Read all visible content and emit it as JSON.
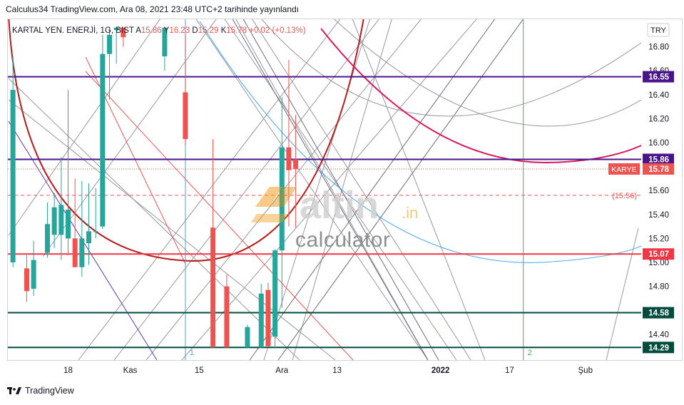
{
  "header": {
    "publish_line": "Calculus34 TradingView.com, Ara 08, 2021 23:48 UTC+2 tarihinde yayınlandı"
  },
  "footer": {
    "brand": "TradingView"
  },
  "watermark": {
    "logo_text": "altin.in",
    "subtitle": "calculator"
  },
  "colors": {
    "bull": "#26a69a",
    "bear": "#ef5350",
    "purple": "#4a148c",
    "teal": "#004d40",
    "red_line": "#f23645",
    "dark_red": "#b71c1c",
    "pink": "#d81b60",
    "blue": "#42a5f5",
    "green": "#4caf50",
    "grey": "#787b86"
  },
  "chart_data": {
    "type": "candlestick",
    "symbol_line": {
      "name": "KARTAL YEN. ENERJİ, 1G, BIST",
      "o_label": "A",
      "o": "15.86",
      "h_label": "Y",
      "h": "16.23",
      "l_label": "D",
      "l": "15.29",
      "c_label": "K",
      "c": "15.78",
      "change": "+0.02 (+0.13%)"
    },
    "currency": "TRY",
    "ylim": [
      14.29,
      16.96
    ],
    "y_ticks": [
      14.4,
      14.6,
      14.8,
      15.0,
      15.2,
      15.4,
      15.6,
      15.8,
      16.0,
      16.2,
      16.4,
      16.6,
      16.8
    ],
    "y_tick_labels": [
      "14.40",
      "14.60",
      "14.80",
      "15.00",
      "15.20",
      "15.40",
      "15.60",
      "15.80",
      "16.00",
      "16.20",
      "16.40",
      "16.60",
      "16.80"
    ],
    "x_ticks": [
      {
        "label": "18",
        "bar": 8.5
      },
      {
        "label": "Kas",
        "bar": 17.5
      },
      {
        "label": "15",
        "bar": 27.5
      },
      {
        "label": "Ara",
        "bar": 39.5
      },
      {
        "label": "13",
        "bar": 47.5
      },
      {
        "label": "2022",
        "bar": 62.5,
        "bold": true
      },
      {
        "label": "17",
        "bar": 72.5
      },
      {
        "label": "Şub",
        "bar": 83.5
      }
    ],
    "candles": [
      {
        "o": 15.0,
        "h": 16.72,
        "l": 14.96,
        "c": 16.44
      },
      {
        "o": 14.95,
        "h": 15.06,
        "l": 14.67,
        "c": 14.76
      },
      {
        "o": 14.78,
        "h": 15.18,
        "l": 14.72,
        "c": 15.02
      },
      {
        "o": 15.08,
        "h": 15.5,
        "l": 15.04,
        "c": 15.32
      },
      {
        "o": 15.23,
        "h": 15.58,
        "l": 15.12,
        "c": 15.46
      },
      {
        "o": 15.23,
        "h": 15.88,
        "l": 15.02,
        "c": 15.48
      },
      {
        "o": 15.2,
        "h": 16.44,
        "l": 15.06,
        "c": 15.44
      },
      {
        "o": 15.2,
        "h": 15.7,
        "l": 14.98,
        "c": 14.96
      },
      {
        "o": 14.96,
        "h": 15.68,
        "l": 14.88,
        "c": 15.2
      },
      {
        "o": 15.16,
        "h": 15.66,
        "l": 14.98,
        "c": 15.26
      },
      {
        "o": 15.26,
        "h": 15.62,
        "l": 15.2,
        "c": 15.26
      },
      {
        "o": 15.3,
        "h": 16.9,
        "l": 15.28,
        "c": 16.74
      },
      {
        "o": 16.74,
        "h": 16.96,
        "l": 16.36,
        "c": 16.9
      },
      {
        "o": 16.94,
        "h": 16.96,
        "l": 16.66,
        "c": 16.96
      },
      {
        "o": 16.96,
        "h": 16.96,
        "l": 16.8,
        "c": 16.88
      },
      {
        "o": 16.72,
        "h": 16.96,
        "l": 16.6,
        "c": 16.96
      },
      {
        "o": 16.42,
        "h": 16.9,
        "l": 15.98,
        "c": 16.03
      },
      {
        "o": 15.29,
        "h": 16.03,
        "l": 14.29,
        "c": 14.29
      },
      {
        "o": 14.8,
        "h": 14.9,
        "l": 14.29,
        "c": 14.29
      },
      {
        "o": 14.29,
        "h": 14.48,
        "l": 14.29,
        "c": 14.46
      },
      {
        "o": 14.29,
        "h": 14.82,
        "l": 14.29,
        "c": 14.74
      },
      {
        "o": 14.77,
        "h": 14.83,
        "l": 14.29,
        "c": 14.3
      },
      {
        "o": 14.38,
        "h": 15.11,
        "l": 14.29,
        "c": 15.1
      },
      {
        "o": 15.1,
        "h": 16.38,
        "l": 14.62,
        "c": 15.96
      },
      {
        "o": 15.96,
        "h": 16.69,
        "l": 15.3,
        "c": 15.77
      },
      {
        "o": 15.86,
        "h": 16.23,
        "l": 15.29,
        "c": 15.78
      }
    ],
    "candle_positions": [
      0,
      2,
      3,
      5,
      6,
      7,
      8,
      9,
      10,
      11,
      12,
      13,
      14,
      15,
      16,
      22,
      25,
      29,
      31,
      34,
      36,
      37,
      38,
      39,
      40,
      41
    ],
    "horizontal_levels": [
      {
        "value": 16.55,
        "label": "16.55",
        "color": "#4a148c"
      },
      {
        "value": 15.86,
        "label": "15.86",
        "color": "#4a148c"
      },
      {
        "value": 15.07,
        "label": "15.07",
        "color": "#f23645"
      },
      {
        "value": 14.58,
        "label": "14.58",
        "color": "#004d40"
      },
      {
        "value": 14.29,
        "label": "14.29",
        "color": "#004d40"
      }
    ],
    "dashed_level": {
      "value": 15.56,
      "label": "(15.56)"
    },
    "last_price": {
      "value": 15.78,
      "label": "15.78",
      "symbol_tag": "KARYE"
    },
    "vertical_markers": [
      {
        "bar": 25.5,
        "label": "1",
        "color": "#42a5f5"
      },
      {
        "bar": 74.5,
        "label": "2",
        "color": "#4caf50"
      }
    ]
  }
}
